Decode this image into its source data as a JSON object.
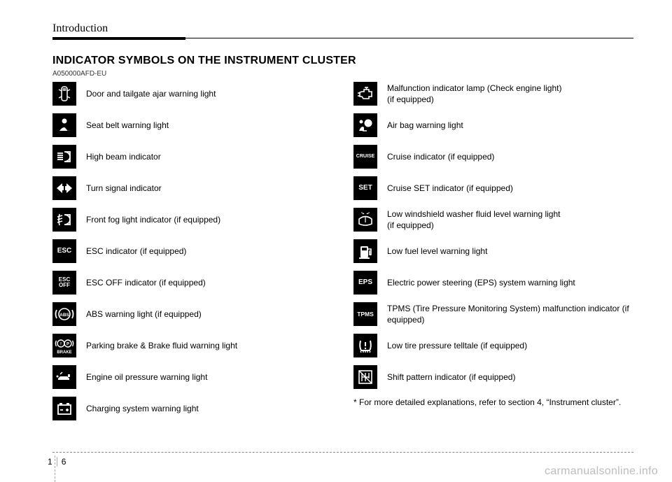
{
  "header": {
    "section": "Introduction",
    "title": "INDICATOR SYMBOLS ON THE INSTRUMENT CLUSTER",
    "code": "A050000AFD-EU"
  },
  "left": [
    {
      "icon": "door-ajar-icon",
      "label": "Door and tailgate ajar warning light"
    },
    {
      "icon": "seatbelt-icon",
      "label": "Seat belt warning light"
    },
    {
      "icon": "high-beam-icon",
      "label": "High beam indicator"
    },
    {
      "icon": "turn-signal-icon",
      "label": "Turn signal indicator"
    },
    {
      "icon": "fog-light-icon",
      "label": "Front fog light indicator (if equipped)"
    },
    {
      "icon": "esc-icon",
      "text": "ESC",
      "label": "ESC indicator (if equipped)"
    },
    {
      "icon": "esc-off-icon",
      "text": "ESC\nOFF",
      "label": "ESC OFF indicator (if equipped)"
    },
    {
      "icon": "abs-icon",
      "label": "ABS warning light (if equipped)"
    },
    {
      "icon": "brake-icon",
      "label": "Parking brake & Brake fluid warning light"
    },
    {
      "icon": "oil-icon",
      "label": "Engine oil pressure warning light"
    },
    {
      "icon": "battery-icon",
      "label": "Charging system warning light"
    }
  ],
  "right": [
    {
      "icon": "check-engine-icon",
      "label": "Malfunction indicator lamp (Check engine light)\n(if equipped)"
    },
    {
      "icon": "airbag-icon",
      "label": "Air bag warning light"
    },
    {
      "icon": "cruise-icon",
      "text": "CRUISE",
      "label": "Cruise indicator (if equipped)"
    },
    {
      "icon": "set-icon",
      "text": "SET",
      "label": "Cruise SET indicator (if equipped)"
    },
    {
      "icon": "washer-icon",
      "label": "Low windshield washer fluid level warning light\n(if equipped)"
    },
    {
      "icon": "fuel-icon",
      "label": "Low fuel level warning light"
    },
    {
      "icon": "eps-icon",
      "text": "EPS",
      "label": "Electric power steering (EPS) system warning light"
    },
    {
      "icon": "tpms-icon",
      "text": "TPMS",
      "label": "TPMS (Tire Pressure Monitoring System) malfunction indicator (if equipped)"
    },
    {
      "icon": "tire-icon",
      "label": "Low tire pressure telltale (if equipped)"
    },
    {
      "icon": "shift-icon",
      "label": "Shift pattern indicator (if equipped)"
    }
  ],
  "footnote": "* For more detailed explanations, refer to section 4, “Instrument cluster”.",
  "page": {
    "chapter": "1",
    "num": "6"
  },
  "watermark": "carmanualsonline.info",
  "colors": {
    "icon_bg": "#000000",
    "icon_fg": "#ffffff",
    "text": "#000000",
    "watermark": "#bdbdbd"
  }
}
